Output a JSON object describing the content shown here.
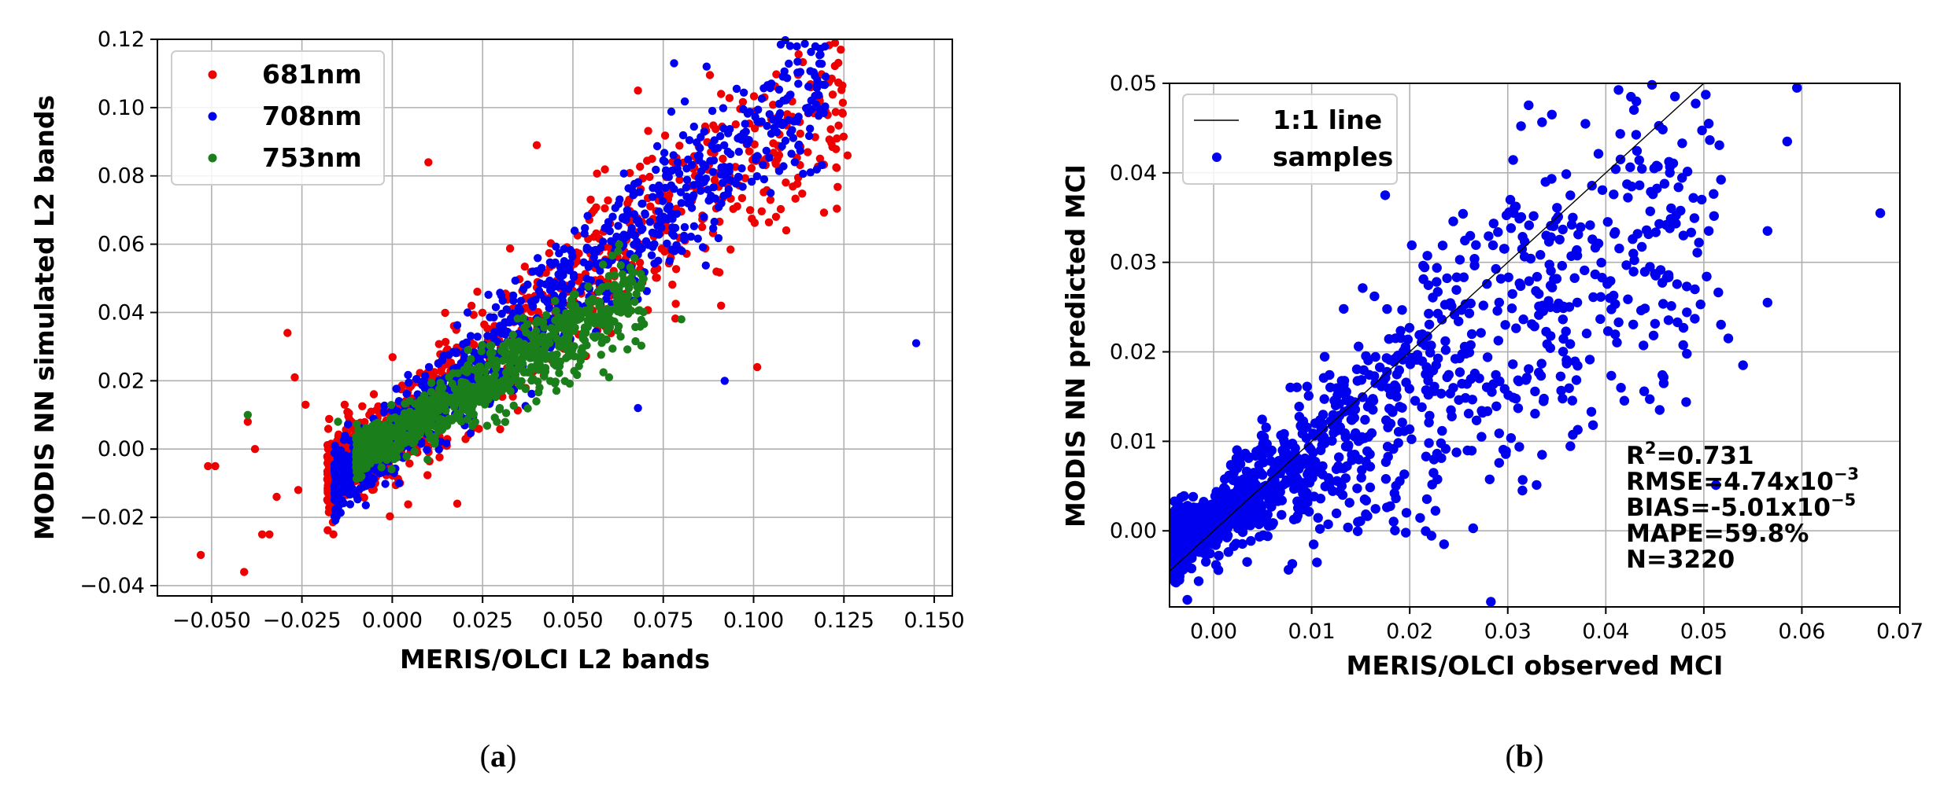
{
  "chart_data": [
    {
      "type": "scatter",
      "panel_label": "a",
      "xlabel": "MERIS/OLCI L2 bands",
      "ylabel": "MODIS NN simulated L2 bands",
      "xlim": [
        -0.065,
        0.155
      ],
      "ylim": [
        -0.043,
        0.12
      ],
      "grid": true,
      "legend_position": "top-left",
      "x_ticks": [
        -0.05,
        -0.025,
        0.0,
        0.025,
        0.05,
        0.075,
        0.1,
        0.125,
        0.15
      ],
      "x_tick_labels": [
        "−0.050",
        "−0.025",
        "0.000",
        "0.025",
        "0.050",
        "0.075",
        "0.100",
        "0.125",
        "0.150"
      ],
      "y_ticks": [
        -0.04,
        -0.02,
        0.0,
        0.02,
        0.04,
        0.06,
        0.08,
        0.1,
        0.12
      ],
      "y_tick_labels": [
        "−0.04",
        "−0.02",
        "0.00",
        "0.02",
        "0.04",
        "0.06",
        "0.08",
        "0.10",
        "0.12"
      ],
      "series": [
        {
          "name": "681nm",
          "color": "#ee0000",
          "outliers": [
            [
              -0.053,
              -0.031
            ],
            [
              -0.051,
              -0.005
            ],
            [
              -0.049,
              -0.005
            ],
            [
              -0.041,
              -0.036
            ],
            [
              -0.04,
              0.008
            ],
            [
              -0.038,
              0.0
            ],
            [
              -0.036,
              -0.025
            ],
            [
              -0.034,
              -0.025
            ],
            [
              -0.032,
              -0.014
            ],
            [
              -0.029,
              0.034
            ],
            [
              -0.026,
              -0.012
            ],
            [
              -0.024,
              0.013
            ],
            [
              -0.027,
              0.021
            ],
            [
              0.018,
              -0.016
            ],
            [
              0.101,
              0.024
            ],
            [
              0.126,
              0.086
            ],
            [
              0.091,
              0.104
            ],
            [
              0.103,
              0.103
            ],
            [
              0.068,
              0.105
            ],
            [
              0.01,
              0.084
            ],
            [
              0.04,
              0.089
            ],
            [
              0.091,
              0.042
            ]
          ],
          "cloud": {
            "count": 900,
            "x_min": -0.018,
            "x_max": 0.125,
            "slope": 0.8,
            "intercept": 0.006,
            "spread": 0.011
          }
        },
        {
          "name": "708nm",
          "color": "#0000ee",
          "outliers": [
            [
              0.145,
              0.031
            ],
            [
              0.078,
              0.113
            ],
            [
              0.092,
              0.02
            ],
            [
              0.068,
              0.012
            ],
            [
              0.112,
              0.096
            ],
            [
              0.087,
              0.112
            ]
          ],
          "cloud": {
            "count": 1100,
            "x_min": -0.016,
            "x_max": 0.12,
            "slope": 0.88,
            "intercept": 0.004,
            "spread": 0.008
          }
        },
        {
          "name": "753nm",
          "color": "#1a7f1a",
          "outliers": [
            [
              -0.04,
              0.01
            ],
            [
              0.08,
              0.038
            ],
            [
              -0.015,
              0.008
            ],
            [
              0.06,
              0.021
            ]
          ],
          "cloud": {
            "count": 900,
            "x_min": -0.01,
            "x_max": 0.07,
            "slope": 0.6,
            "intercept": 0.004,
            "spread": 0.005
          }
        }
      ]
    },
    {
      "type": "scatter",
      "panel_label": "b",
      "xlabel": "MERIS/OLCI observed MCI",
      "ylabel": "MODIS NN predicted MCI",
      "xlim": [
        -0.0045,
        0.07
      ],
      "ylim": [
        -0.0085,
        0.05
      ],
      "grid": true,
      "legend_position": "top-left",
      "x_ticks": [
        0.0,
        0.01,
        0.02,
        0.03,
        0.04,
        0.05,
        0.06,
        0.07
      ],
      "x_tick_labels": [
        "0.00",
        "0.01",
        "0.02",
        "0.03",
        "0.04",
        "0.05",
        "0.06",
        "0.07"
      ],
      "y_ticks": [
        0.0,
        0.01,
        0.02,
        0.03,
        0.04,
        0.05
      ],
      "y_tick_labels": [
        "0.00",
        "0.01",
        "0.02",
        "0.03",
        "0.04",
        "0.05"
      ],
      "legend": [
        "1:1 line",
        "samples"
      ],
      "line_color": "#000000",
      "marker_color": "#0000ee",
      "one_to_one_line": [
        [
          -0.0045,
          -0.0045
        ],
        [
          0.05,
          0.05
        ]
      ],
      "outliers": [
        [
          0.068,
          0.0355
        ],
        [
          0.0595,
          0.0495
        ],
        [
          0.0585,
          0.0435
        ],
        [
          0.0565,
          0.0335
        ],
        [
          0.0565,
          0.0255
        ],
        [
          0.054,
          0.0185
        ],
        [
          0.0525,
          0.0215
        ],
        [
          0.0505,
          0.0455
        ],
        [
          0.0505,
          0.0335
        ],
        [
          0.0455,
          0.0135
        ],
        [
          0.0445,
          0.0295
        ],
        [
          0.0415,
          0.0415
        ],
        [
          0.0345,
          0.0465
        ],
        [
          0.0335,
          0.0085
        ],
        [
          0.0315,
          0.0045
        ],
        [
          0.0235,
          -0.0015
        ],
        [
          0.0175,
          0.0375
        ]
      ],
      "samples": {
        "count": 1500,
        "x_min": -0.004,
        "x_max": 0.052,
        "slope": 0.72,
        "intercept": 0.0012,
        "spread_factor": 0.38
      },
      "stats": {
        "r2_label": "R",
        "r2_exp": "2",
        "r2_value": "=0.731",
        "rmse_label": "RMSE=4.74x10",
        "rmse_exp": "−3",
        "bias_label": "BIAS=-5.01x10",
        "bias_exp": "−5",
        "mape": "MAPE=59.8%",
        "n": "N=3220"
      }
    }
  ]
}
